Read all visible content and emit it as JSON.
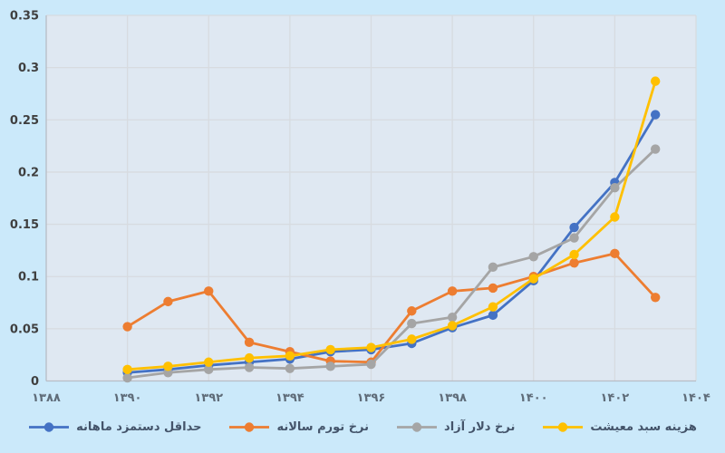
{
  "chart_data": {
    "type": "line",
    "x_axis": {
      "range": [
        1388,
        1404
      ],
      "tick_years": [
        1388,
        1390,
        1392,
        1394,
        1396,
        1398,
        1400,
        1402,
        1404
      ],
      "tick_labels": [
        "۱۳۸۸",
        "۱۳۹۰",
        "۱۳۹۲",
        "۱۳۹۴",
        "۱۳۹۶",
        "۱۳۹۸",
        "۱۴۰۰",
        "۱۴۰۲",
        "۱۴۰۴"
      ]
    },
    "y_axis": {
      "range": [
        0,
        0.35
      ],
      "tick_values": [
        0,
        0.05,
        0.1,
        0.15,
        0.2,
        0.25,
        0.3,
        0.35
      ],
      "tick_labels": [
        "0",
        "0.05",
        "0.1",
        "0.15",
        "0.2",
        "0.25",
        "0.3",
        "0.35"
      ]
    },
    "grid": true,
    "legend_position": "bottom",
    "x": [
      1390,
      1391,
      1392,
      1393,
      1394,
      1395,
      1396,
      1397,
      1398,
      1399,
      1400,
      1401,
      1402,
      1403
    ],
    "series": [
      {
        "id": "min-wage",
        "name": "حداقل دستمزد ماهانه",
        "color": "#4472c4",
        "values": [
          0.008,
          0.011,
          0.015,
          0.018,
          0.021,
          0.028,
          0.03,
          0.036,
          0.051,
          0.063,
          0.096,
          0.147,
          0.19,
          0.255
        ]
      },
      {
        "id": "inflation",
        "name": "نرخ تورم سالانه",
        "color": "#ed7d31",
        "values": [
          0.052,
          0.076,
          0.086,
          0.037,
          0.028,
          0.019,
          0.018,
          0.067,
          0.086,
          0.089,
          0.1,
          0.113,
          0.122,
          0.08
        ]
      },
      {
        "id": "dollar",
        "name": "نرخ دلار آزاد",
        "color": "#a5a5a5",
        "values": [
          0.003,
          0.008,
          0.011,
          0.013,
          0.012,
          0.014,
          0.016,
          0.055,
          0.061,
          0.109,
          0.119,
          0.137,
          0.185,
          0.222
        ]
      },
      {
        "id": "basket",
        "name": "هزینه سبد معیشت",
        "color": "#ffc000",
        "values": [
          0.011,
          0.014,
          0.018,
          0.022,
          0.024,
          0.03,
          0.032,
          0.04,
          0.053,
          0.071,
          0.098,
          0.121,
          0.157,
          0.287
        ]
      }
    ]
  },
  "colors": {
    "page_bg": "#cbe9fa",
    "plot_bg": "#dfe8f2",
    "gridline": "#d7dbe0",
    "axis_line": "#b7bdc5",
    "y_label": "#3f3f3f",
    "x_label": "#5f6c79",
    "legend_text": "#44546a"
  }
}
